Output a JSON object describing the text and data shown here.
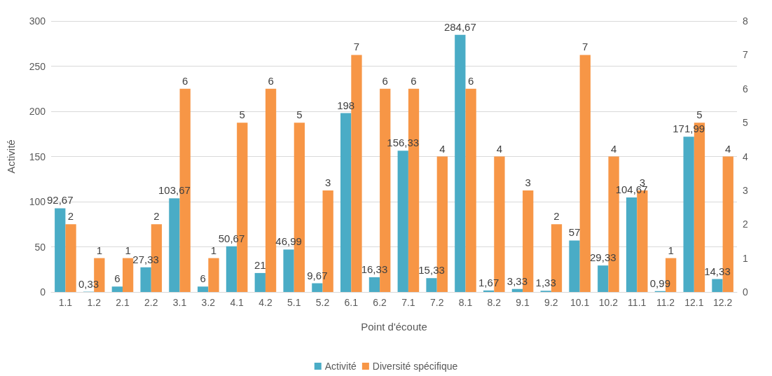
{
  "chart_data": {
    "type": "bar",
    "xlabel": "Point d'écoute",
    "ylabel": "Activité",
    "categories": [
      "1.1",
      "1.2",
      "2.1",
      "2.2",
      "3.1",
      "3.2",
      "4.1",
      "4.2",
      "5.1",
      "5.2",
      "6.1",
      "6.2",
      "7.1",
      "7.2",
      "8.1",
      "8.2",
      "9.1",
      "9.2",
      "10.1",
      "10.2",
      "11.1",
      "11.2",
      "12.1",
      "12.2"
    ],
    "series": [
      {
        "name": "Activité",
        "color": "#4aacc6",
        "values": [
          92.67,
          0.33,
          6,
          27.33,
          103.67,
          6,
          50.67,
          21,
          46.99,
          9.67,
          198,
          16.33,
          156.33,
          15.33,
          284.67,
          1.67,
          3.33,
          1.33,
          57,
          29.33,
          104.67,
          0.99,
          171.99,
          14.33
        ],
        "value_labels": [
          "92,67",
          "0,33",
          "6",
          "27,33",
          "103,67",
          "6",
          "50,67",
          "21",
          "46,99",
          "9,67",
          "198",
          "16,33",
          "156,33",
          "15,33",
          "284,67",
          "1,67",
          "3,33",
          "1,33",
          "57",
          "29,33",
          "104,67",
          "0,99",
          "171,99",
          "14,33"
        ]
      },
      {
        "name": "Diversité spécifique",
        "color": "#f79646",
        "axis": "y2",
        "values": [
          2,
          1,
          1,
          2,
          6,
          1,
          5,
          6,
          5,
          3,
          7,
          6,
          6,
          4,
          6,
          4,
          3,
          2,
          7,
          4,
          3,
          1,
          5,
          4
        ],
        "value_labels": [
          "2",
          "1",
          "1",
          "2",
          "6",
          "1",
          "5",
          "6",
          "5",
          "3",
          "7",
          "6",
          "6",
          "4",
          "6",
          "4",
          "3",
          "2",
          "7",
          "4",
          "3",
          "1",
          "5",
          "4"
        ]
      }
    ],
    "ylim": [
      0,
      300
    ],
    "yticks": [
      0,
      50,
      100,
      150,
      200,
      250,
      300
    ],
    "y2lim": [
      0,
      8
    ],
    "y2ticks": [
      0,
      1,
      2,
      3,
      4,
      5,
      6,
      7,
      8
    ],
    "grid": "y",
    "legend": "bottom"
  }
}
